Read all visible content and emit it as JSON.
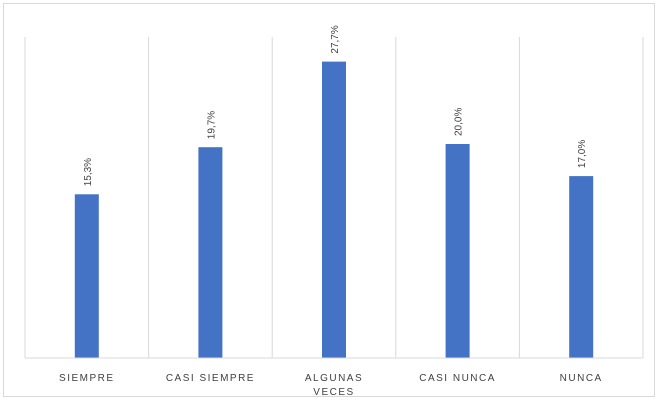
{
  "chart_data": {
    "type": "bar",
    "categories": [
      [
        "SIEMPRE"
      ],
      [
        "CASI SIEMPRE"
      ],
      [
        "ALGUNAS",
        "VECES"
      ],
      [
        "CASI NUNCA"
      ],
      [
        "NUNCA"
      ]
    ],
    "values": [
      15.3,
      19.7,
      27.7,
      20.0,
      17.0
    ],
    "data_labels": [
      "15,3%",
      "19,7%",
      "27,7%",
      "20,0%",
      "17,0%"
    ],
    "ylim": [
      0,
      30
    ],
    "bar_color": "#4472c4",
    "gridlines": "vertical category separators",
    "legend": "none"
  }
}
